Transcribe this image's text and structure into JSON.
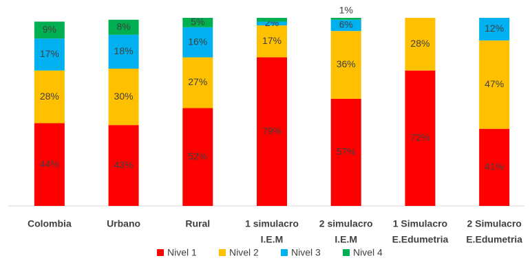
{
  "chart_data": {
    "type": "stacked_bar",
    "categories": [
      [
        "Colombia"
      ],
      [
        "Urbano"
      ],
      [
        "Rural"
      ],
      [
        "1 simulacro",
        "I.E.M"
      ],
      [
        "2 simulacro",
        "I.E.M"
      ],
      [
        "1 Simulacro",
        "E.Edumetria"
      ],
      [
        "2 Simulacro",
        "E.Edumetria"
      ]
    ],
    "series": [
      {
        "name": "Nivel 1",
        "color": "#ff0000",
        "values": [
          44,
          43,
          52,
          79,
          57,
          72,
          41
        ],
        "value_labels": [
          "44%",
          "43%",
          "52%",
          "79%",
          "57%",
          "72%",
          "41%"
        ]
      },
      {
        "name": "Nivel 2",
        "color": "#ffc000",
        "values": [
          28,
          30,
          27,
          17,
          36,
          28,
          47
        ],
        "value_labels": [
          "28%",
          "30%",
          "27%",
          "17%",
          "36%",
          "28%",
          "47%"
        ]
      },
      {
        "name": "Nivel 3",
        "color": "#00b0f0",
        "values": [
          17,
          18,
          16,
          2,
          6,
          null,
          12
        ],
        "value_labels": [
          "17%",
          "18%",
          "16%",
          "2%",
          "6%",
          null,
          "12%"
        ]
      },
      {
        "name": "Nivel 4",
        "color": "#00b050",
        "values": [
          9,
          8,
          5,
          2,
          1,
          null,
          null
        ],
        "value_labels": [
          "9%",
          "8%",
          "5%",
          null,
          "1%",
          null,
          null
        ]
      }
    ],
    "legend": "bottom"
  }
}
